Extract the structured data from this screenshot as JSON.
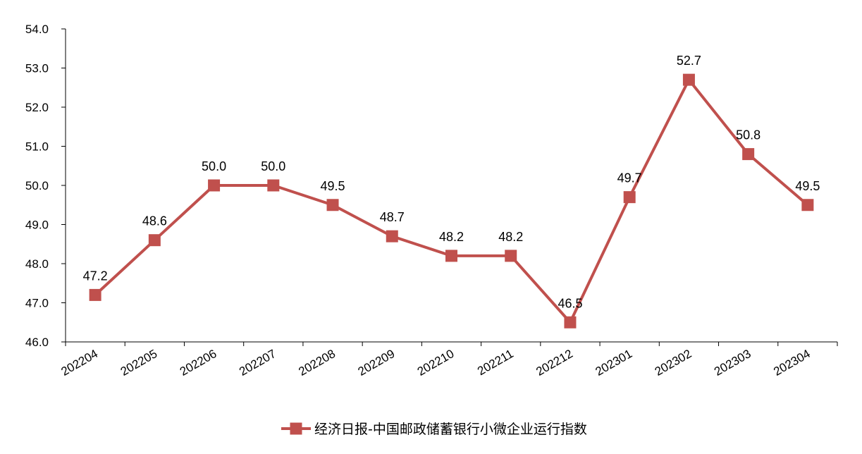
{
  "chart_data": {
    "type": "line",
    "categories": [
      "202204",
      "202205",
      "202206",
      "202207",
      "202208",
      "202209",
      "202210",
      "202211",
      "202212",
      "202301",
      "202302",
      "202303",
      "202304"
    ],
    "series": [
      {
        "name": "经济日报-中国邮政储蓄银行小微企业运行指数",
        "values": [
          47.2,
          48.6,
          50.0,
          50.0,
          49.5,
          48.7,
          48.2,
          48.2,
          46.5,
          49.7,
          52.7,
          50.8,
          49.5
        ],
        "labels": [
          "47.2",
          "48.6",
          "50.0",
          "50.0",
          "49.5",
          "48.7",
          "48.2",
          "48.2",
          "46.5",
          "49.7",
          "52.7",
          "50.8",
          "49.5"
        ],
        "color": "#C0504D"
      }
    ],
    "ylim": [
      46.0,
      54.0
    ],
    "yticks": [
      "46.0",
      "47.0",
      "48.0",
      "49.0",
      "50.0",
      "51.0",
      "52.0",
      "53.0",
      "54.0"
    ],
    "grid": false,
    "legend": "bottom-center",
    "marker": "square"
  }
}
